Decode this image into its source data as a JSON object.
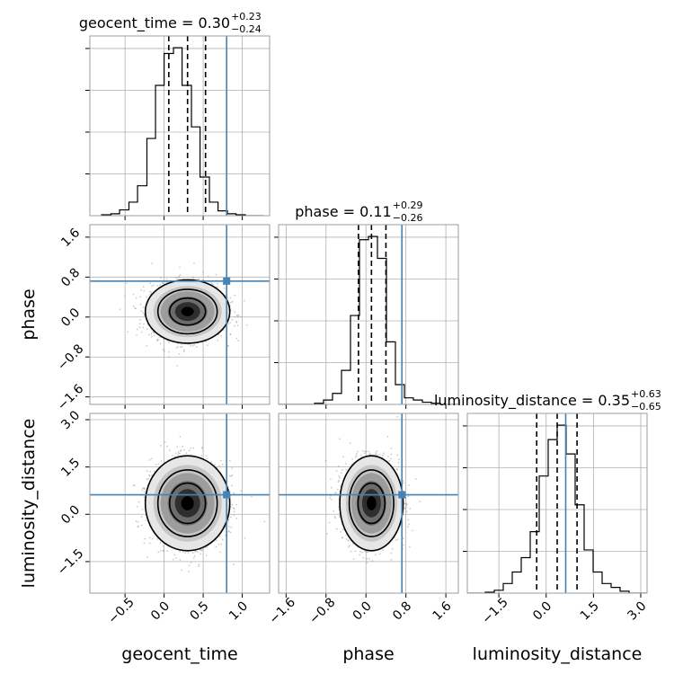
{
  "chart_data": {
    "type": "corner",
    "parameters": [
      "geocent_time",
      "phase",
      "luminosity_distance"
    ],
    "truths": {
      "geocent_time": 0.8,
      "phase": 0.72,
      "luminosity_distance": 0.62
    },
    "titles": [
      {
        "param": "geocent_time",
        "text": "geocent_time = 0.30",
        "upper": "+0.23",
        "lower": "−0.24"
      },
      {
        "param": "phase",
        "text": "phase = 0.11",
        "upper": "+0.29",
        "lower": "−0.26"
      },
      {
        "param": "luminosity_distance",
        "text": "luminosity_distance = 0.35",
        "upper": "+0.63",
        "lower": "−0.65"
      }
    ],
    "axis_labels": {
      "x": [
        "geocent_time",
        "phase",
        "luminosity_distance"
      ],
      "y": [
        "phase",
        "luminosity_distance"
      ]
    },
    "ranges": {
      "geocent_time": [
        -0.95,
        1.35
      ],
      "phase": [
        -1.75,
        1.85
      ],
      "luminosity_distance": [
        -2.5,
        3.2
      ]
    },
    "ticks": {
      "geocent_time": {
        "values": [
          -0.5,
          0.0,
          0.5,
          1.0
        ],
        "labels": [
          "−0.5",
          "0.0",
          "0.5",
          "1.0"
        ]
      },
      "phase": {
        "values": [
          -1.6,
          -0.8,
          0.0,
          0.8,
          1.6
        ],
        "labels": [
          "−1.6",
          "−0.8",
          "0.0",
          "0.8",
          "1.6"
        ]
      },
      "luminosity_distance": {
        "values": [
          -1.5,
          0.0,
          1.5,
          3.0
        ],
        "labels": [
          "−1.5",
          "0.0",
          "1.5",
          "3.0"
        ]
      }
    },
    "quantiles": {
      "geocent_time": [
        0.06,
        0.3,
        0.53
      ],
      "phase": [
        -0.15,
        0.11,
        0.4
      ],
      "luminosity_distance": [
        -0.3,
        0.35,
        0.98
      ]
    },
    "histograms": {
      "geocent_time": {
        "edges": [
          -0.8,
          -0.68,
          -0.57,
          -0.45,
          -0.34,
          -0.22,
          -0.11,
          0.0,
          0.12,
          0.23,
          0.35,
          0.46,
          0.58,
          0.69,
          0.81,
          0.92,
          1.04,
          1.15,
          1.27
        ],
        "counts": [
          1,
          2,
          6,
          14,
          31,
          80,
          135,
          168,
          174,
          135,
          92,
          40,
          14,
          5,
          2,
          1,
          0,
          0
        ]
      },
      "phase": {
        "edges": [
          -1.75,
          -1.57,
          -1.39,
          -1.21,
          -1.03,
          -0.85,
          -0.67,
          -0.49,
          -0.31,
          -0.13,
          0.05,
          0.23,
          0.41,
          0.59,
          0.77,
          0.95,
          1.13,
          1.31,
          1.49,
          1.67,
          1.85
        ],
        "counts": [
          0,
          0,
          0,
          0,
          1,
          4,
          10,
          31,
          81,
          150,
          153,
          133,
          57,
          18,
          6,
          4,
          2,
          1,
          0,
          0
        ]
      },
      "luminosity_distance": {
        "edges": [
          -2.5,
          -2.215,
          -1.93,
          -1.645,
          -1.36,
          -1.075,
          -0.79,
          -0.505,
          -0.22,
          0.065,
          0.35,
          0.635,
          0.92,
          1.205,
          1.49,
          1.775,
          2.06,
          2.345,
          2.63,
          2.915,
          3.2
        ],
        "counts": [
          0,
          0,
          1,
          3,
          10,
          22,
          37,
          64,
          122,
          160,
          175,
          145,
          92,
          45,
          22,
          10,
          6,
          2,
          0,
          0
        ]
      }
    },
    "contours_2d": [
      {
        "x": "geocent_time",
        "y": "phase",
        "center": [
          0.3,
          0.11
        ],
        "sigma": [
          0.23,
          0.27
        ],
        "levels": [
          1.0,
          1.65,
          2.35
        ]
      },
      {
        "x": "geocent_time",
        "y": "luminosity_distance",
        "center": [
          0.3,
          0.35
        ],
        "sigma": [
          0.23,
          0.64
        ],
        "levels": [
          1.0,
          1.65,
          2.35
        ]
      },
      {
        "x": "phase",
        "y": "luminosity_distance",
        "center": [
          0.11,
          0.35
        ],
        "sigma": [
          0.27,
          0.64
        ],
        "levels": [
          1.0,
          1.65,
          2.35
        ]
      }
    ],
    "colors": {
      "truth": "#4682b4",
      "hist": "#000000",
      "points": "#999999",
      "grid": "#b0b0b0"
    },
    "grid": true
  }
}
